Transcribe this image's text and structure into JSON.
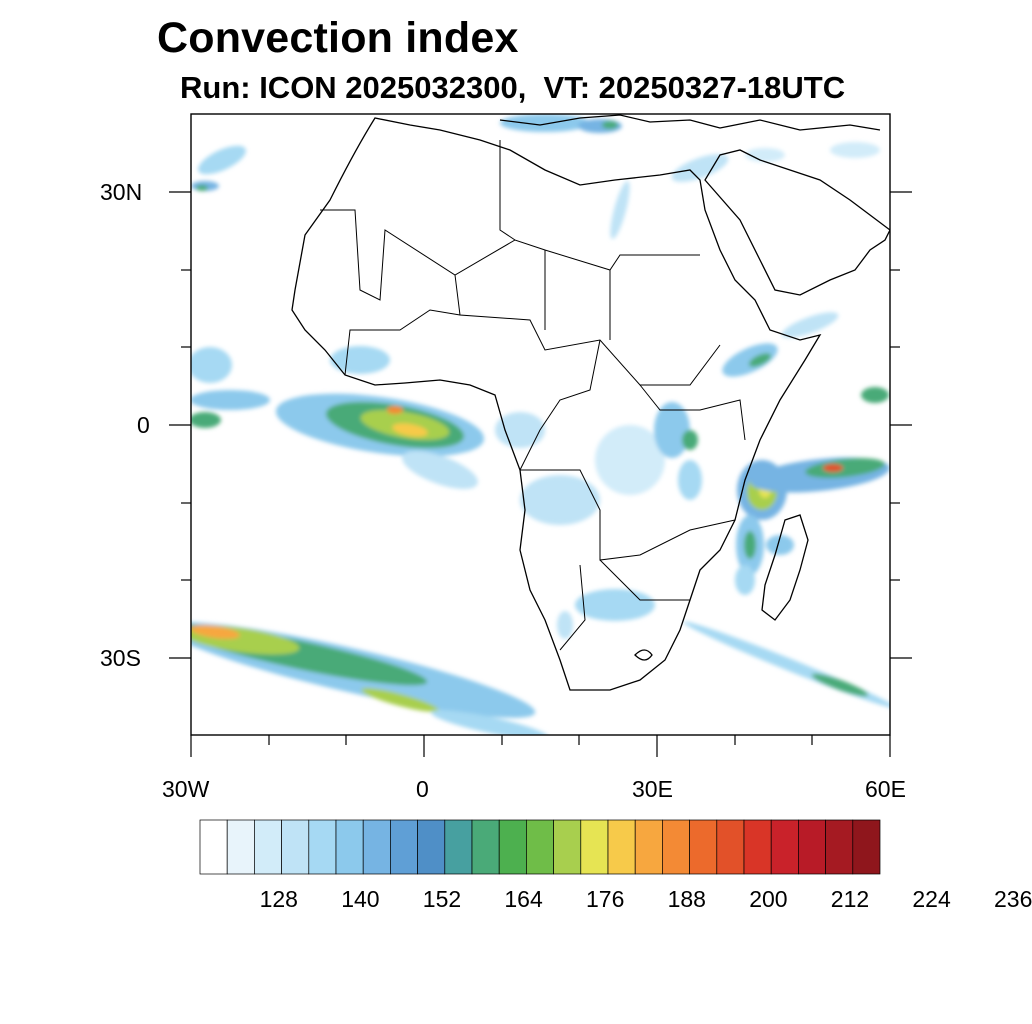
{
  "header": {
    "title": "Convection index",
    "subtitle": "Run: ICON 2025032300,  VT: 20250327-18UTC"
  },
  "map": {
    "projection": "lat-lon",
    "lon_range": [
      -30,
      60
    ],
    "lat_range": [
      -40,
      40
    ],
    "lon_ticks": [
      "30W",
      "0",
      "30E",
      "60E"
    ],
    "lat_ticks": [
      "30N",
      "0",
      "30S"
    ],
    "coastline_color": "#000000"
  },
  "colorbar": {
    "labels": [
      "128",
      "140",
      "152",
      "164",
      "176",
      "188",
      "200",
      "212",
      "224",
      "236"
    ],
    "colors": [
      "#ffffff",
      "#e8f4fb",
      "#d2ecf9",
      "#bfe3f6",
      "#a6d9f3",
      "#8cc9ec",
      "#76b4e3",
      "#5f9fd6",
      "#4f8fc7",
      "#47a0a0",
      "#4aaa78",
      "#4db04f",
      "#6fbd48",
      "#a8cf4e",
      "#e6e453",
      "#f7ca4a",
      "#f7a73f",
      "#f38a35",
      "#ec6a2c",
      "#e25129",
      "#d93527",
      "#c9222a",
      "#b81b27",
      "#a51a22",
      "#8f161c"
    ]
  }
}
